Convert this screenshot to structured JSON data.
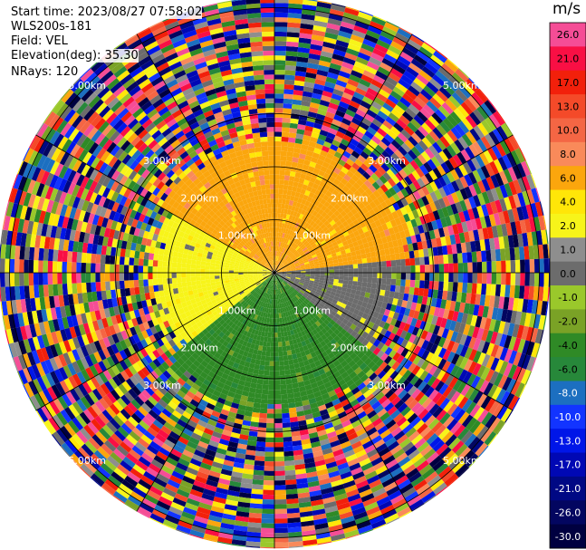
{
  "header": {
    "start_time": "Start time: 2023/08/27 07:58:02",
    "instrument": "WLS200s-181",
    "field": "Field: VEL",
    "elevation": "Elevation(deg): 35.30",
    "nrays": "NRays: 120"
  },
  "colorbar": {
    "unit": "m/s",
    "levels": [
      {
        "label": "26.0",
        "color": "#f54d96"
      },
      {
        "label": "21.0",
        "color": "#f90f44"
      },
      {
        "label": "17.0",
        "color": "#f2200b"
      },
      {
        "label": "13.0",
        "color": "#f44a29"
      },
      {
        "label": "10.0",
        "color": "#f46644"
      },
      {
        "label": "8.0",
        "color": "#f98a5a"
      },
      {
        "label": "6.0",
        "color": "#fba60d"
      },
      {
        "label": "4.0",
        "color": "#ffe608"
      },
      {
        "label": "2.0",
        "color": "#f7f41a"
      },
      {
        "label": "1.0",
        "color": "#8e8e8e"
      },
      {
        "label": "0.0",
        "color": "#6c6c6c"
      },
      {
        "label": "-1.0",
        "color": "#9ac82b"
      },
      {
        "label": "-2.0",
        "color": "#7aa226"
      },
      {
        "label": "-4.0",
        "color": "#2f8a26"
      },
      {
        "label": "-6.0",
        "color": "#27883a"
      },
      {
        "label": "-8.0",
        "color": "#1c6fc0"
      },
      {
        "label": "-10.0",
        "color": "#1234ff"
      },
      {
        "label": "-13.0",
        "color": "#0016e8"
      },
      {
        "label": "-17.0",
        "color": "#0008b4"
      },
      {
        "label": "-21.0",
        "color": "#000884"
      },
      {
        "label": "-26.0",
        "color": "#030660"
      },
      {
        "label": "-30.0",
        "color": "#000040"
      }
    ]
  },
  "chart_data": {
    "type": "heatmap",
    "projection": "polar PPI",
    "field": "VEL",
    "unit": "m/s",
    "nrays": 120,
    "range_rings_km": [
      1,
      2,
      3,
      5
    ],
    "range_ring_labels": [
      "1.00km",
      "2.00km",
      "3.00km",
      "5.00km"
    ],
    "azimuth_spokes_deg": [
      0,
      30,
      60,
      90,
      120,
      150,
      180,
      210,
      240,
      270,
      300,
      330
    ],
    "max_range_km": 5.2,
    "sectors": [
      {
        "az_from": 300,
        "az_to": 85,
        "range_to_km": 2.5,
        "velocity": 6.0
      },
      {
        "az_from": 230,
        "az_to": 300,
        "range_to_km": 2.3,
        "velocity": 2.0
      },
      {
        "az_from": 85,
        "az_to": 130,
        "range_to_km": 2.3,
        "velocity": 0.0
      },
      {
        "az_from": 130,
        "az_to": 230,
        "range_to_km": 2.6,
        "velocity": -4.0
      }
    ],
    "far_range": "noise"
  }
}
